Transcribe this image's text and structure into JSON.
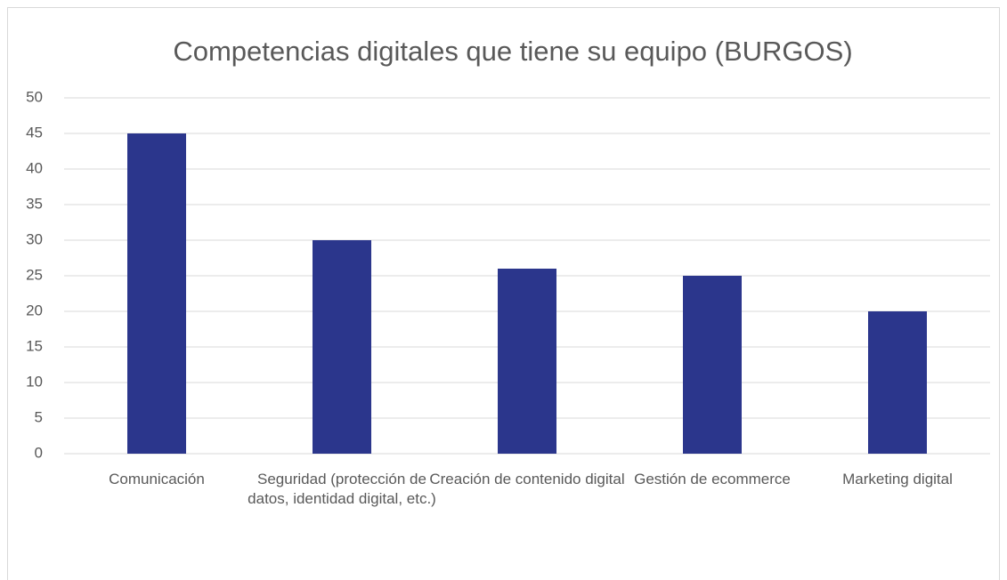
{
  "chart_data": {
    "type": "bar",
    "title": "Competencias digitales que tiene su equipo (BURGOS)",
    "categories": [
      "Comunicación",
      "Seguridad (protección de datos, identidad digital, etc.)",
      "Creación de contenido digital",
      "Gestión de ecommerce",
      "Marketing digital"
    ],
    "values": [
      45,
      30,
      26,
      25,
      20
    ],
    "color": "#2b368c",
    "ylim": [
      0,
      50
    ],
    "yticks": [
      0,
      5,
      10,
      15,
      20,
      25,
      30,
      35,
      40,
      45,
      50
    ],
    "grid": true
  }
}
